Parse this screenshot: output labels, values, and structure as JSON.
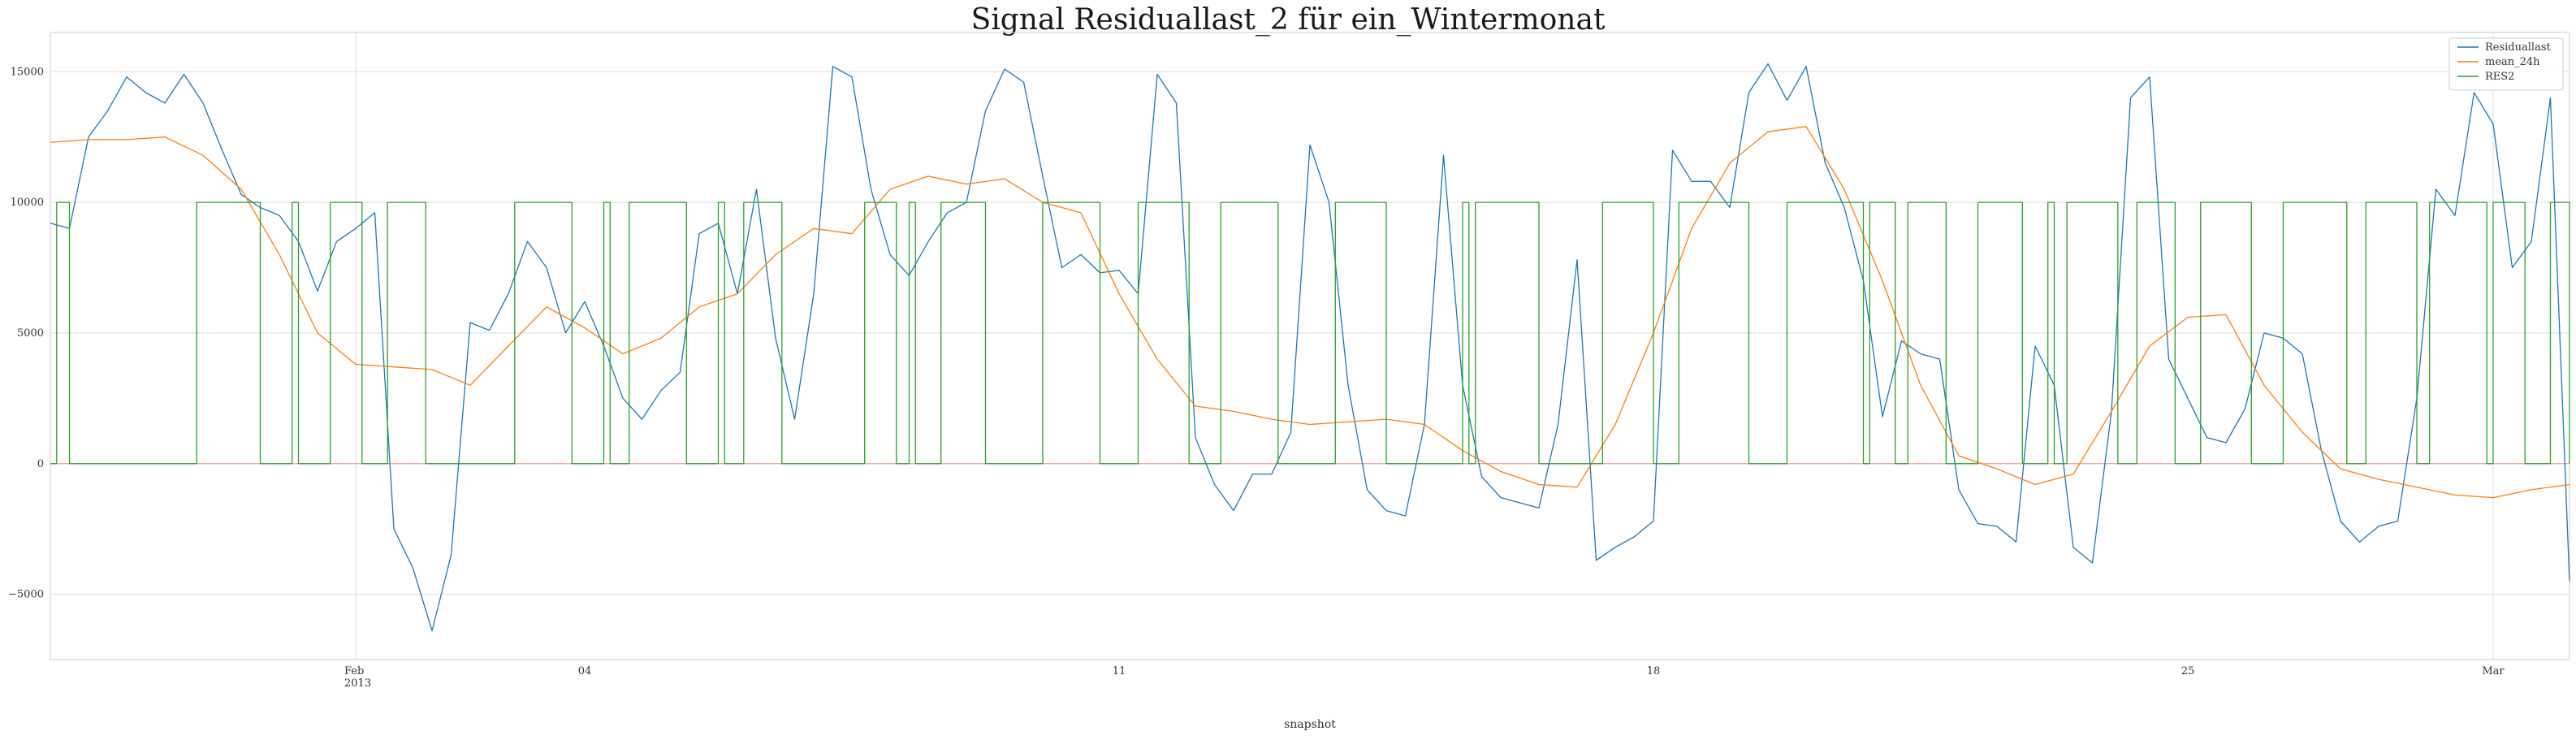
{
  "chart_data": {
    "type": "line",
    "title": "Signal Residuallast_2 für ein_Wintermonat",
    "xlabel": "snapshot",
    "ylabel": "",
    "ylim": [
      -7500,
      16500
    ],
    "xlim_days": [
      "2013-01-28T00:00",
      "2013-03-02T00:00"
    ],
    "yticks": [
      {
        "value": -5000,
        "label": "−5000"
      },
      {
        "value": 0,
        "label": "0"
      },
      {
        "value": 5000,
        "label": "5000"
      },
      {
        "value": 10000,
        "label": "10000"
      },
      {
        "value": 15000,
        "label": "15000"
      }
    ],
    "xticks": [
      {
        "date": "2013-02-01",
        "label": "Feb",
        "sublabel": "2013",
        "gridline": true
      },
      {
        "date": "2013-02-04",
        "label": "04",
        "sublabel": "",
        "gridline": false
      },
      {
        "date": "2013-02-11",
        "label": "11",
        "sublabel": "",
        "gridline": false
      },
      {
        "date": "2013-02-18",
        "label": "18",
        "sublabel": "",
        "gridline": false
      },
      {
        "date": "2013-02-25",
        "label": "25",
        "sublabel": "",
        "gridline": false
      },
      {
        "date": "2013-03-01",
        "label": "Mar",
        "sublabel": "",
        "gridline": true
      }
    ],
    "grid": true,
    "legend_position": "top-right",
    "reference_line": {
      "y": 0,
      "color": "#ff9999"
    },
    "series": [
      {
        "name": "Residuallast",
        "color": "#1f77b4",
        "points": [
          [
            "2013-01-28T00:00",
            9200
          ],
          [
            "2013-01-28T06:00",
            9000
          ],
          [
            "2013-01-28T12:00",
            12500
          ],
          [
            "2013-01-28T18:00",
            13500
          ],
          [
            "2013-01-29T00:00",
            14800
          ],
          [
            "2013-01-29T06:00",
            14200
          ],
          [
            "2013-01-29T12:00",
            13800
          ],
          [
            "2013-01-29T18:00",
            14900
          ],
          [
            "2013-01-30T00:00",
            13800
          ],
          [
            "2013-01-30T06:00",
            12000
          ],
          [
            "2013-01-30T12:00",
            10300
          ],
          [
            "2013-01-30T18:00",
            9800
          ],
          [
            "2013-01-31T00:00",
            9500
          ],
          [
            "2013-01-31T06:00",
            8500
          ],
          [
            "2013-01-31T12:00",
            6600
          ],
          [
            "2013-01-31T18:00",
            8500
          ],
          [
            "2013-02-01T00:00",
            9000
          ],
          [
            "2013-02-01T06:00",
            9600
          ],
          [
            "2013-02-01T12:00",
            -2500
          ],
          [
            "2013-02-01T18:00",
            -4000
          ],
          [
            "2013-02-02T00:00",
            -6400
          ],
          [
            "2013-02-02T06:00",
            -3500
          ],
          [
            "2013-02-02T12:00",
            5400
          ],
          [
            "2013-02-02T18:00",
            5100
          ],
          [
            "2013-02-03T00:00",
            6500
          ],
          [
            "2013-02-03T06:00",
            8500
          ],
          [
            "2013-02-03T12:00",
            7500
          ],
          [
            "2013-02-03T18:00",
            5000
          ],
          [
            "2013-02-04T00:00",
            6200
          ],
          [
            "2013-02-04T06:00",
            4500
          ],
          [
            "2013-02-04T12:00",
            2500
          ],
          [
            "2013-02-04T18:00",
            1700
          ],
          [
            "2013-02-05T00:00",
            2800
          ],
          [
            "2013-02-05T06:00",
            3500
          ],
          [
            "2013-02-05T12:00",
            8800
          ],
          [
            "2013-02-05T18:00",
            9200
          ],
          [
            "2013-02-06T00:00",
            6500
          ],
          [
            "2013-02-06T06:00",
            10500
          ],
          [
            "2013-02-06T12:00",
            4800
          ],
          [
            "2013-02-06T18:00",
            1700
          ],
          [
            "2013-02-07T00:00",
            6500
          ],
          [
            "2013-02-07T06:00",
            15200
          ],
          [
            "2013-02-07T12:00",
            14800
          ],
          [
            "2013-02-07T18:00",
            10500
          ],
          [
            "2013-02-08T00:00",
            8000
          ],
          [
            "2013-02-08T06:00",
            7200
          ],
          [
            "2013-02-08T12:00",
            8500
          ],
          [
            "2013-02-08T18:00",
            9600
          ],
          [
            "2013-02-09T00:00",
            10000
          ],
          [
            "2013-02-09T06:00",
            13500
          ],
          [
            "2013-02-09T12:00",
            15100
          ],
          [
            "2013-02-09T18:00",
            14600
          ],
          [
            "2013-02-10T00:00",
            11000
          ],
          [
            "2013-02-10T06:00",
            7500
          ],
          [
            "2013-02-10T12:00",
            8000
          ],
          [
            "2013-02-10T18:00",
            7300
          ],
          [
            "2013-02-11T00:00",
            7400
          ],
          [
            "2013-02-11T06:00",
            6500
          ],
          [
            "2013-02-11T12:00",
            14900
          ],
          [
            "2013-02-11T18:00",
            13800
          ],
          [
            "2013-02-12T00:00",
            1000
          ],
          [
            "2013-02-12T06:00",
            -800
          ],
          [
            "2013-02-12T12:00",
            -1800
          ],
          [
            "2013-02-12T18:00",
            -400
          ],
          [
            "2013-02-13T00:00",
            -400
          ],
          [
            "2013-02-13T06:00",
            1200
          ],
          [
            "2013-02-13T12:00",
            12200
          ],
          [
            "2013-02-13T18:00",
            10000
          ],
          [
            "2013-02-14T00:00",
            3000
          ],
          [
            "2013-02-14T06:00",
            -1000
          ],
          [
            "2013-02-14T12:00",
            -1800
          ],
          [
            "2013-02-14T18:00",
            -2000
          ],
          [
            "2013-02-15T00:00",
            1500
          ],
          [
            "2013-02-15T06:00",
            11800
          ],
          [
            "2013-02-15T12:00",
            3000
          ],
          [
            "2013-02-15T18:00",
            -500
          ],
          [
            "2013-02-16T00:00",
            -1300
          ],
          [
            "2013-02-16T06:00",
            -1500
          ],
          [
            "2013-02-16T12:00",
            -1700
          ],
          [
            "2013-02-16T18:00",
            1500
          ],
          [
            "2013-02-17T00:00",
            7800
          ],
          [
            "2013-02-17T06:00",
            -3700
          ],
          [
            "2013-02-17T12:00",
            -3200
          ],
          [
            "2013-02-17T18:00",
            -2800
          ],
          [
            "2013-02-18T00:00",
            -2200
          ],
          [
            "2013-02-18T06:00",
            12000
          ],
          [
            "2013-02-18T12:00",
            10800
          ],
          [
            "2013-02-18T18:00",
            10800
          ],
          [
            "2013-02-19T00:00",
            9800
          ],
          [
            "2013-02-19T06:00",
            14200
          ],
          [
            "2013-02-19T12:00",
            15300
          ],
          [
            "2013-02-19T18:00",
            13900
          ],
          [
            "2013-02-20T00:00",
            15200
          ],
          [
            "2013-02-20T06:00",
            11500
          ],
          [
            "2013-02-20T12:00",
            9800
          ],
          [
            "2013-02-20T18:00",
            7000
          ],
          [
            "2013-02-21T00:00",
            1800
          ],
          [
            "2013-02-21T06:00",
            4700
          ],
          [
            "2013-02-21T12:00",
            4200
          ],
          [
            "2013-02-21T18:00",
            4000
          ],
          [
            "2013-02-22T00:00",
            -1000
          ],
          [
            "2013-02-22T06:00",
            -2300
          ],
          [
            "2013-02-22T12:00",
            -2400
          ],
          [
            "2013-02-22T18:00",
            -3000
          ],
          [
            "2013-02-23T00:00",
            4500
          ],
          [
            "2013-02-23T06:00",
            3000
          ],
          [
            "2013-02-23T12:00",
            -3200
          ],
          [
            "2013-02-23T18:00",
            -3800
          ],
          [
            "2013-02-24T00:00",
            2000
          ],
          [
            "2013-02-24T06:00",
            14000
          ],
          [
            "2013-02-24T12:00",
            14800
          ],
          [
            "2013-02-24T18:00",
            4000
          ],
          [
            "2013-02-25T00:00",
            2500
          ],
          [
            "2013-02-25T06:00",
            1000
          ],
          [
            "2013-02-25T12:00",
            800
          ],
          [
            "2013-02-25T18:00",
            2100
          ],
          [
            "2013-02-26T00:00",
            5000
          ],
          [
            "2013-02-26T06:00",
            4800
          ],
          [
            "2013-02-26T12:00",
            4200
          ],
          [
            "2013-02-26T18:00",
            500
          ],
          [
            "2013-02-27T00:00",
            -2200
          ],
          [
            "2013-02-27T06:00",
            -3000
          ],
          [
            "2013-02-27T12:00",
            -2400
          ],
          [
            "2013-02-27T18:00",
            -2200
          ],
          [
            "2013-02-28T00:00",
            2500
          ],
          [
            "2013-02-28T06:00",
            10500
          ],
          [
            "2013-02-28T12:00",
            9500
          ],
          [
            "2013-02-28T18:00",
            14200
          ],
          [
            "2013-03-01T00:00",
            13000
          ],
          [
            "2013-03-01T06:00",
            7500
          ],
          [
            "2013-03-01T12:00",
            8500
          ],
          [
            "2013-03-01T18:00",
            14000
          ],
          [
            "2013-03-02T00:00",
            -4500
          ]
        ]
      },
      {
        "name": "mean_24h",
        "color": "#ff7f0e",
        "points": [
          [
            "2013-01-28T00:00",
            12300
          ],
          [
            "2013-01-28T12:00",
            12400
          ],
          [
            "2013-01-29T00:00",
            12400
          ],
          [
            "2013-01-29T12:00",
            12500
          ],
          [
            "2013-01-30T00:00",
            11800
          ],
          [
            "2013-01-30T12:00",
            10500
          ],
          [
            "2013-01-31T00:00",
            8000
          ],
          [
            "2013-01-31T12:00",
            5000
          ],
          [
            "2013-02-01T00:00",
            3800
          ],
          [
            "2013-02-01T12:00",
            3700
          ],
          [
            "2013-02-02T00:00",
            3600
          ],
          [
            "2013-02-02T12:00",
            3000
          ],
          [
            "2013-02-03T00:00",
            4500
          ],
          [
            "2013-02-03T12:00",
            6000
          ],
          [
            "2013-02-04T00:00",
            5200
          ],
          [
            "2013-02-04T12:00",
            4200
          ],
          [
            "2013-02-05T00:00",
            4800
          ],
          [
            "2013-02-05T12:00",
            6000
          ],
          [
            "2013-02-06T00:00",
            6500
          ],
          [
            "2013-02-06T12:00",
            8000
          ],
          [
            "2013-02-07T00:00",
            9000
          ],
          [
            "2013-02-07T12:00",
            8800
          ],
          [
            "2013-02-08T00:00",
            10500
          ],
          [
            "2013-02-08T12:00",
            11000
          ],
          [
            "2013-02-09T00:00",
            10700
          ],
          [
            "2013-02-09T12:00",
            10900
          ],
          [
            "2013-02-10T00:00",
            10000
          ],
          [
            "2013-02-10T12:00",
            9600
          ],
          [
            "2013-02-11T00:00",
            6500
          ],
          [
            "2013-02-11T12:00",
            4000
          ],
          [
            "2013-02-12T00:00",
            2200
          ],
          [
            "2013-02-12T12:00",
            2000
          ],
          [
            "2013-02-13T00:00",
            1700
          ],
          [
            "2013-02-13T12:00",
            1500
          ],
          [
            "2013-02-14T00:00",
            1600
          ],
          [
            "2013-02-14T12:00",
            1700
          ],
          [
            "2013-02-15T00:00",
            1500
          ],
          [
            "2013-02-15T12:00",
            500
          ],
          [
            "2013-02-16T00:00",
            -300
          ],
          [
            "2013-02-16T12:00",
            -800
          ],
          [
            "2013-02-17T00:00",
            -900
          ],
          [
            "2013-02-17T12:00",
            1500
          ],
          [
            "2013-02-18T00:00",
            5000
          ],
          [
            "2013-02-18T12:00",
            9000
          ],
          [
            "2013-02-19T00:00",
            11500
          ],
          [
            "2013-02-19T12:00",
            12700
          ],
          [
            "2013-02-20T00:00",
            12900
          ],
          [
            "2013-02-20T12:00",
            10500
          ],
          [
            "2013-02-21T00:00",
            7000
          ],
          [
            "2013-02-21T12:00",
            3000
          ],
          [
            "2013-02-22T00:00",
            300
          ],
          [
            "2013-02-22T12:00",
            -200
          ],
          [
            "2013-02-23T00:00",
            -800
          ],
          [
            "2013-02-23T12:00",
            -400
          ],
          [
            "2013-02-24T00:00",
            2000
          ],
          [
            "2013-02-24T12:00",
            4500
          ],
          [
            "2013-02-25T00:00",
            5600
          ],
          [
            "2013-02-25T12:00",
            5700
          ],
          [
            "2013-02-26T00:00",
            3000
          ],
          [
            "2013-02-26T12:00",
            1200
          ],
          [
            "2013-02-27T00:00",
            -200
          ],
          [
            "2013-02-27T12:00",
            -600
          ],
          [
            "2013-02-28T00:00",
            -900
          ],
          [
            "2013-02-28T12:00",
            -1200
          ],
          [
            "2013-03-01T00:00",
            -1300
          ],
          [
            "2013-03-01T12:00",
            -1000
          ],
          [
            "2013-03-02T00:00",
            -800
          ]
        ]
      },
      {
        "name": "RES2",
        "color": "#2ca02c",
        "on_value": 10000,
        "off_value": 0,
        "on_intervals": [
          [
            "2013-01-28T02:00",
            "2013-01-28T06:00"
          ],
          [
            "2013-01-29T22:00",
            "2013-01-30T18:00"
          ],
          [
            "2013-01-31T04:00",
            "2013-01-31T06:00"
          ],
          [
            "2013-01-31T16:00",
            "2013-02-01T02:00"
          ],
          [
            "2013-02-01T10:00",
            "2013-02-01T22:00"
          ],
          [
            "2013-02-03T02:00",
            "2013-02-03T20:00"
          ],
          [
            "2013-02-04T06:00",
            "2013-02-04T08:00"
          ],
          [
            "2013-02-04T14:00",
            "2013-02-05T08:00"
          ],
          [
            "2013-02-05T18:00",
            "2013-02-05T20:00"
          ],
          [
            "2013-02-06T02:00",
            "2013-02-06T14:00"
          ],
          [
            "2013-02-07T16:00",
            "2013-02-08T02:00"
          ],
          [
            "2013-02-08T06:00",
            "2013-02-08T08:00"
          ],
          [
            "2013-02-08T16:00",
            "2013-02-09T06:00"
          ],
          [
            "2013-02-10T00:00",
            "2013-02-10T18:00"
          ],
          [
            "2013-02-11T06:00",
            "2013-02-11T22:00"
          ],
          [
            "2013-02-12T08:00",
            "2013-02-13T02:00"
          ],
          [
            "2013-02-13T20:00",
            "2013-02-14T12:00"
          ],
          [
            "2013-02-15T12:00",
            "2013-02-15T14:00"
          ],
          [
            "2013-02-15T16:00",
            "2013-02-16T12:00"
          ],
          [
            "2013-02-17T08:00",
            "2013-02-18T00:00"
          ],
          [
            "2013-02-18T08:00",
            "2013-02-19T06:00"
          ],
          [
            "2013-02-19T18:00",
            "2013-02-20T18:00"
          ],
          [
            "2013-02-20T20:00",
            "2013-02-21T04:00"
          ],
          [
            "2013-02-21T08:00",
            "2013-02-21T20:00"
          ],
          [
            "2013-02-22T06:00",
            "2013-02-22T20:00"
          ],
          [
            "2013-02-23T04:00",
            "2013-02-23T06:00"
          ],
          [
            "2013-02-23T10:00",
            "2013-02-24T02:00"
          ],
          [
            "2013-02-24T08:00",
            "2013-02-24T20:00"
          ],
          [
            "2013-02-25T04:00",
            "2013-02-25T20:00"
          ],
          [
            "2013-02-26T06:00",
            "2013-02-27T02:00"
          ],
          [
            "2013-02-27T08:00",
            "2013-02-28T00:00"
          ],
          [
            "2013-02-28T04:00",
            "2013-02-28T22:00"
          ],
          [
            "2013-03-01T00:00",
            "2013-03-01T10:00"
          ],
          [
            "2013-03-01T18:00",
            "2013-03-02T00:00"
          ]
        ]
      }
    ]
  }
}
